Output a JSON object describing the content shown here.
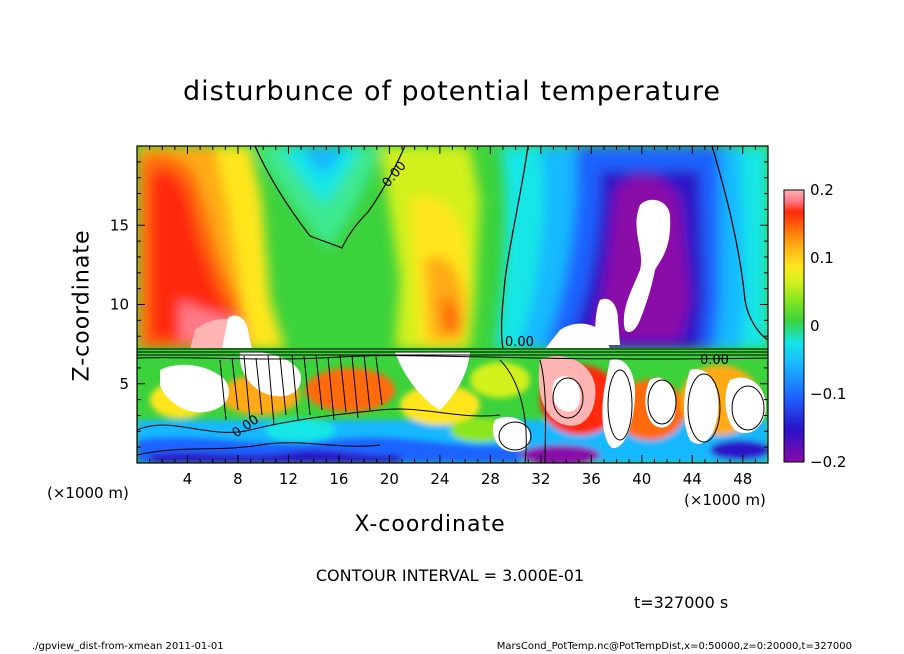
{
  "chart_data": {
    "type": "heatmap",
    "title": "disturbunce of potential temperature",
    "xlabel": "X-coordinate",
    "ylabel": "Z-coordinate",
    "x_unit_label": "(×1000 m)",
    "y_unit_label": "(×1000 m)",
    "xlim": [
      0,
      50
    ],
    "ylim": [
      0,
      20
    ],
    "x_ticks": [
      "4",
      "8",
      "12",
      "16",
      "20",
      "24",
      "28",
      "32",
      "36",
      "40",
      "44",
      "48"
    ],
    "y_ticks": [
      "5",
      "10",
      "15"
    ],
    "colorbar": {
      "range": [
        -0.2,
        0.2
      ],
      "tick_labels": [
        "0.2",
        "0.1",
        "0",
        "−0.1",
        "−0.2"
      ],
      "colors": [
        "#8a0aa8",
        "#2a12c8",
        "#1e64ff",
        "#18b8ff",
        "#14e6e6",
        "#3ee890",
        "#3cd23c",
        "#8ce61e",
        "#d2f01e",
        "#ffe61e",
        "#ffaa14",
        "#ff6a0a",
        "#ff2a0a",
        "#ff7a8a",
        "#ffb4b4"
      ]
    },
    "contour_labels": [
      "0.00"
    ],
    "contour_interval_text": "CONTOUR INTERVAL = 3.000E-01",
    "time_text": "t=327000 s"
  },
  "footer": {
    "left": "./gpview_dist-from-xmean  2011-01-01",
    "right": "MarsCond_PotTemp.nc@PotTempDist,x=0:50000,z=0:20000,t=327000"
  }
}
